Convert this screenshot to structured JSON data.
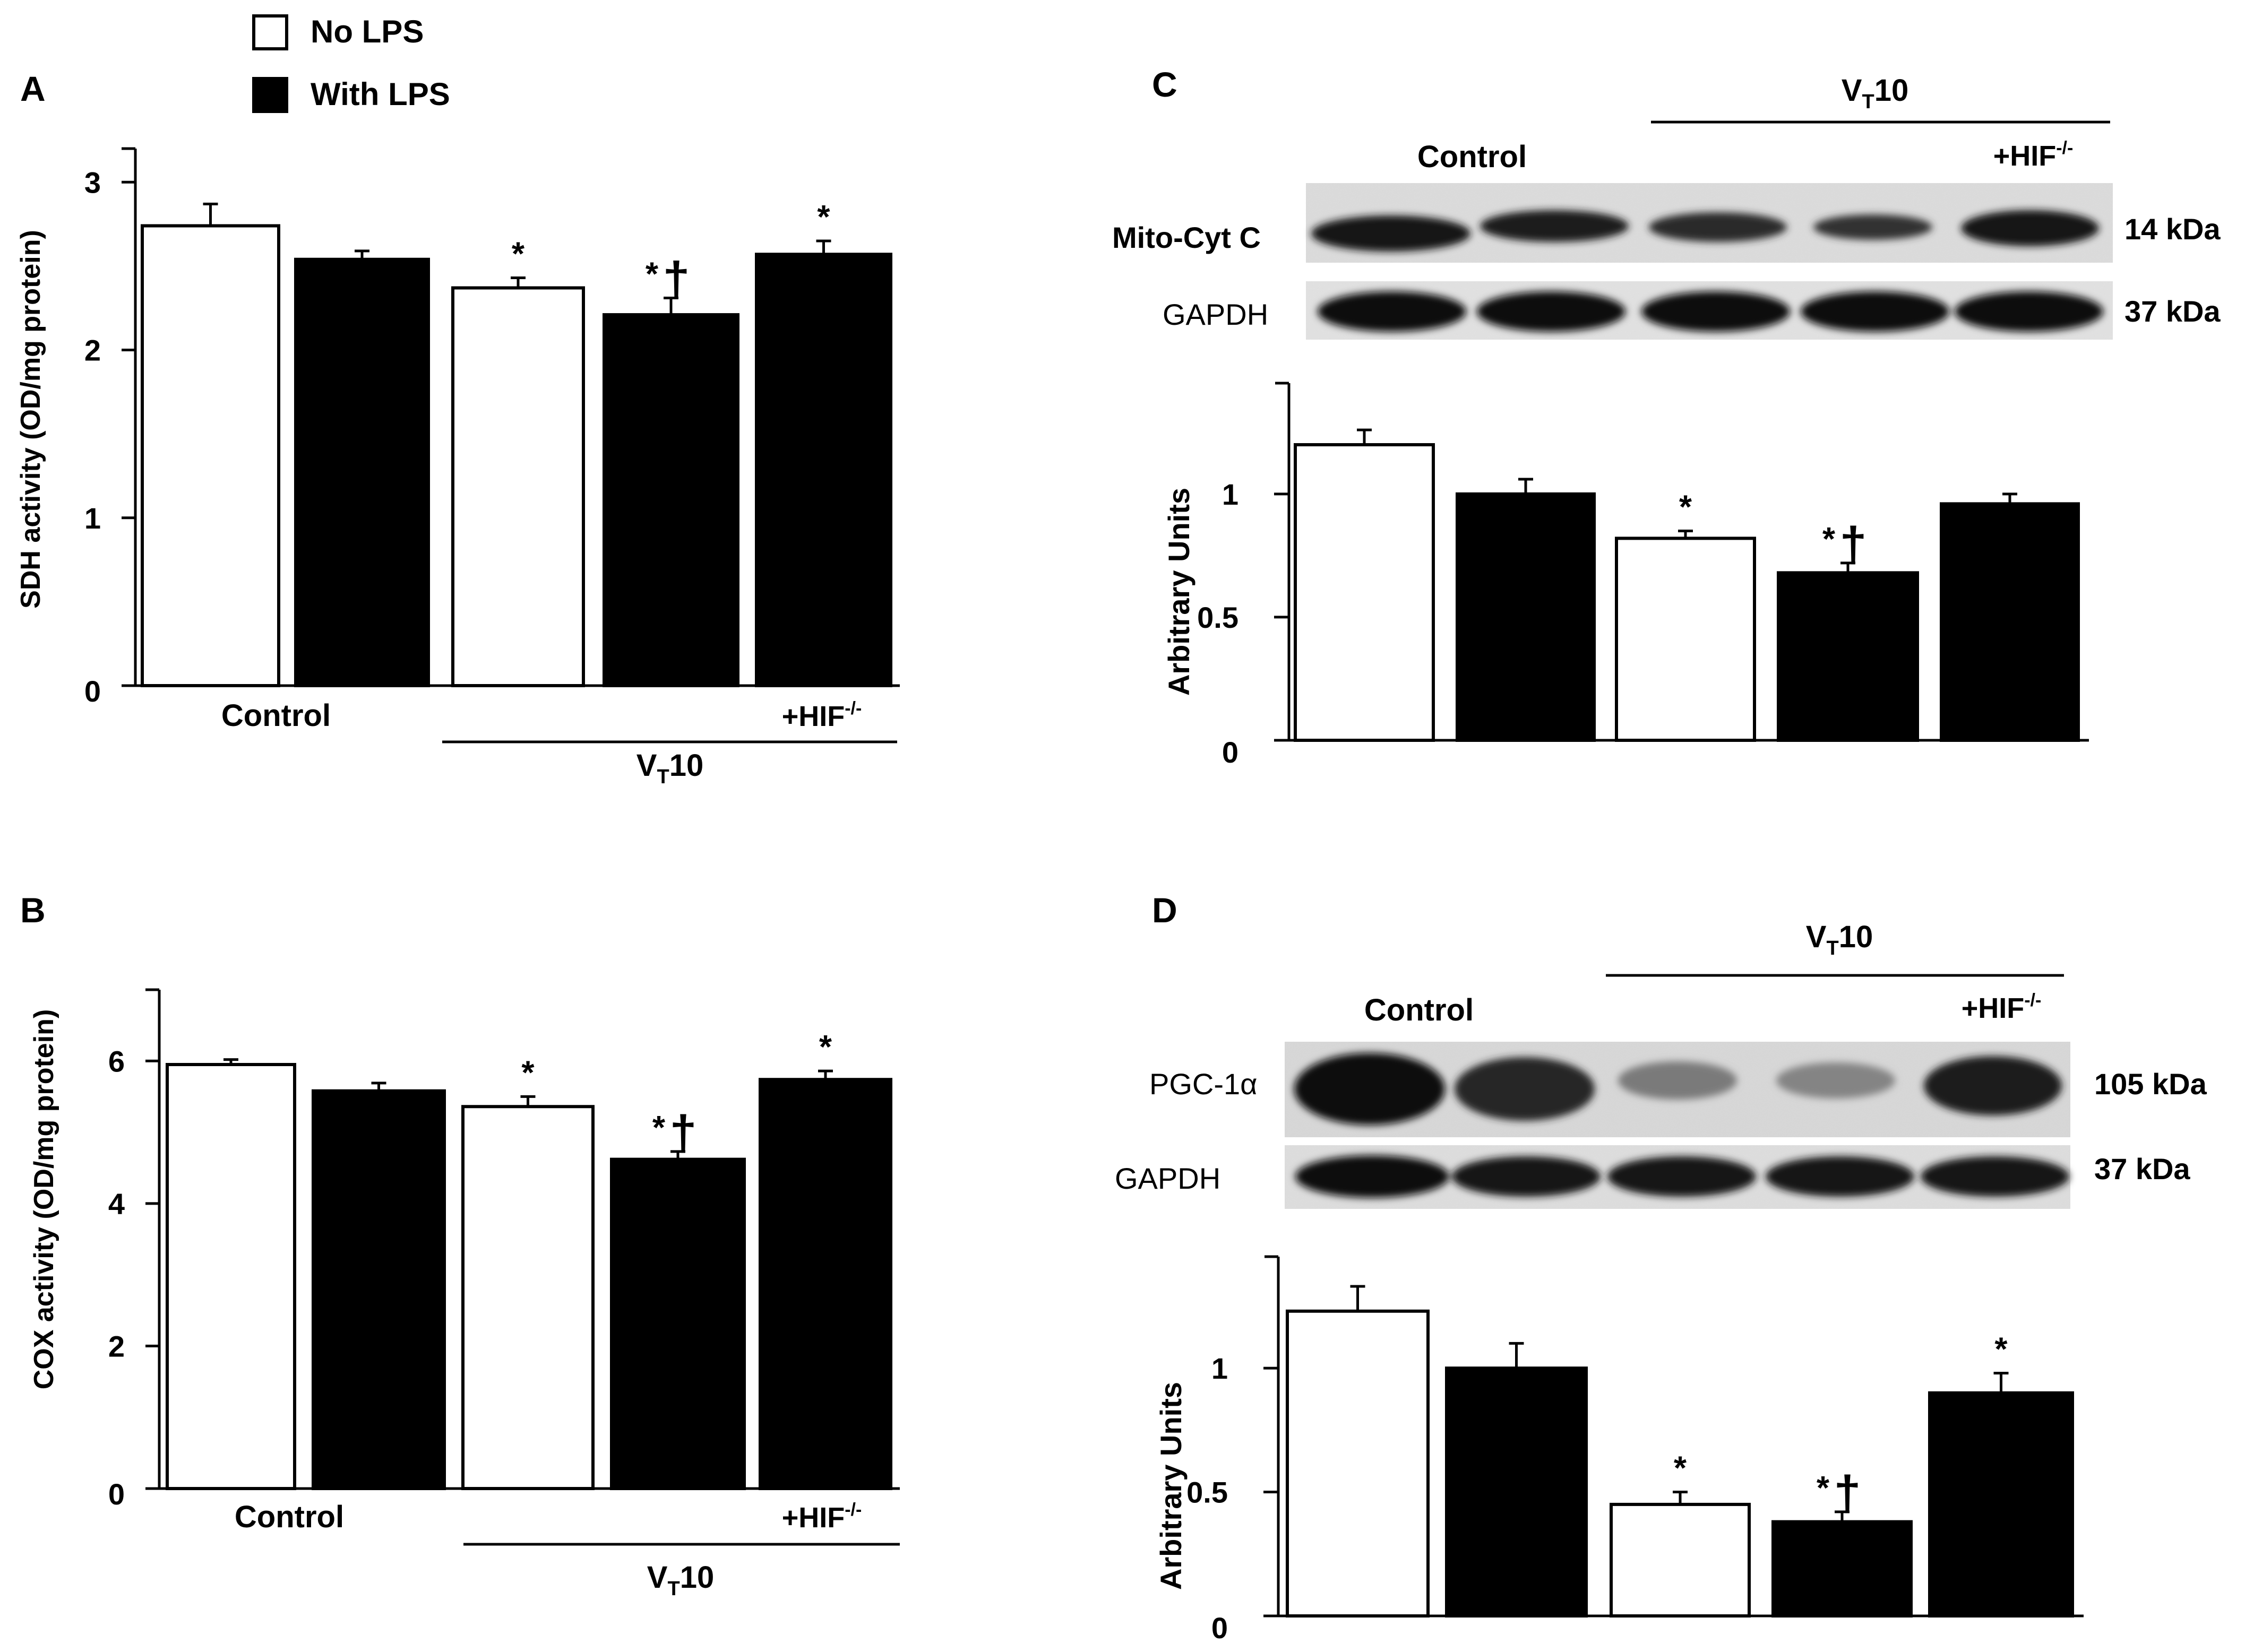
{
  "legend": {
    "items": [
      {
        "label": "No LPS",
        "color": "#ffffff"
      },
      {
        "label": "With LPS",
        "color": "#000000"
      }
    ]
  },
  "group_labels": {
    "control": "Control",
    "vt_prefix": "V",
    "vt_sub": "T",
    "vt_suffix": "10",
    "hif_prefix": "+HIF",
    "hif_sup": "-/-"
  },
  "markers": {
    "star": "*",
    "dagger": "†"
  },
  "colors": {
    "no_lps": "#ffffff",
    "with_lps": "#000000",
    "axis": "#000000"
  },
  "blots": {
    "C": {
      "rows": [
        {
          "label": "Mito-Cyt C",
          "kda": "14 kDa"
        },
        {
          "label": "GAPDH",
          "kda": "37 kDa"
        }
      ]
    },
    "D": {
      "rows": [
        {
          "label": "PGC-1α",
          "kda": "105 kDa"
        },
        {
          "label": "GAPDH",
          "kda": "37 kDa"
        }
      ]
    }
  },
  "chart_data": [
    {
      "panel": "A",
      "type": "bar",
      "ylabel": "SDH activity (OD/mg  protein)",
      "ylim": [
        0,
        3.2
      ],
      "yticks": [
        0,
        1,
        2,
        3
      ],
      "values": [
        2.74,
        2.54,
        2.37,
        2.21,
        2.57
      ],
      "errors": [
        0.13,
        0.05,
        0.06,
        0.1,
        0.08
      ],
      "fills": [
        "#ffffff",
        "#000000",
        "#ffffff",
        "#000000",
        "#000000"
      ],
      "annotations": [
        "",
        "",
        "*",
        "*†",
        "*"
      ]
    },
    {
      "panel": "B",
      "type": "bar",
      "ylabel": "COX activity (OD/mg  protein)",
      "ylim": [
        0,
        7
      ],
      "yticks": [
        0,
        2,
        4,
        6
      ],
      "values": [
        5.95,
        5.58,
        5.36,
        4.62,
        5.74
      ],
      "errors": [
        0.07,
        0.11,
        0.14,
        0.11,
        0.12
      ],
      "fills": [
        "#ffffff",
        "#000000",
        "#ffffff",
        "#000000",
        "#000000"
      ],
      "annotations": [
        "",
        "",
        "*",
        "*†",
        "*"
      ]
    },
    {
      "panel": "C",
      "type": "bar",
      "ylabel": "Arbitrary Units",
      "ylim": [
        0,
        1.45
      ],
      "yticks": [
        0,
        0.5,
        1
      ],
      "values": [
        1.2,
        1.0,
        0.82,
        0.68,
        0.96
      ],
      "errors": [
        0.06,
        0.06,
        0.03,
        0.04,
        0.04
      ],
      "fills": [
        "#ffffff",
        "#000000",
        "#ffffff",
        "#000000",
        "#000000"
      ],
      "annotations": [
        "",
        "",
        "*",
        "*†",
        ""
      ]
    },
    {
      "panel": "D",
      "type": "bar",
      "ylabel": "Arbitrary Units",
      "ylim": [
        0,
        1.45
      ],
      "yticks": [
        0,
        0.5,
        1
      ],
      "values": [
        1.23,
        1.0,
        0.45,
        0.38,
        0.9
      ],
      "errors": [
        0.1,
        0.1,
        0.05,
        0.04,
        0.08
      ],
      "fills": [
        "#ffffff",
        "#000000",
        "#ffffff",
        "#000000",
        "#000000"
      ],
      "annotations": [
        "",
        "",
        "*",
        "*†",
        "*"
      ]
    }
  ]
}
